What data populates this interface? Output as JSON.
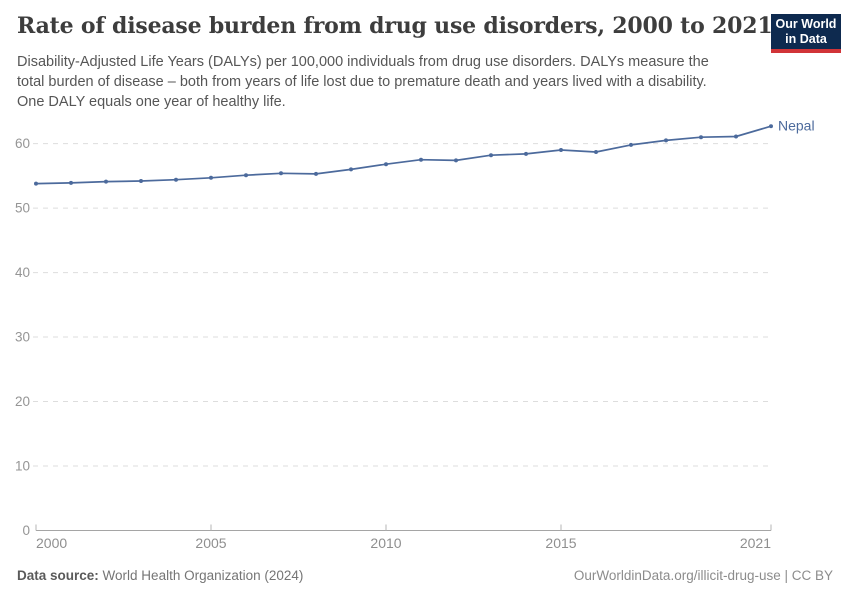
{
  "header": {
    "title": "Rate of disease burden from drug use disorders, 2000 to 2021",
    "subtitle_lines": [
      "Disability-Adjusted Life Years (DALYs) per 100,000 individuals from drug use disorders. DALYs measure the",
      "total burden of disease – both from years of life lost due to premature death and years lived with a disability.",
      "One DALY equals one year of healthy life."
    ]
  },
  "logo": {
    "line1": "Our World",
    "line2": "in Data",
    "bg_color": "#0e2a4f",
    "stripe_color": "#d13438"
  },
  "chart_data": {
    "type": "line",
    "title": "Rate of disease burden from drug use disorders, 2000 to 2021",
    "x": [
      2000,
      2001,
      2002,
      2003,
      2004,
      2005,
      2006,
      2007,
      2008,
      2009,
      2010,
      2011,
      2012,
      2013,
      2014,
      2015,
      2016,
      2017,
      2018,
      2019,
      2020,
      2021
    ],
    "series": [
      {
        "name": "Nepal",
        "color": "#4C6A9C",
        "values": [
          53.8,
          53.9,
          54.1,
          54.2,
          54.4,
          54.7,
          55.1,
          55.4,
          55.3,
          56.0,
          56.8,
          57.5,
          57.4,
          58.2,
          58.4,
          59.0,
          58.7,
          59.8,
          60.5,
          61.0,
          61.1,
          62.7
        ]
      }
    ],
    "xticks": [
      2000,
      2005,
      2010,
      2015,
      2021
    ],
    "yticks": [
      0,
      10,
      20,
      30,
      40,
      50,
      60
    ],
    "xlim": [
      2000,
      2021
    ],
    "ylim": [
      0,
      65
    ],
    "xlabel": "",
    "ylabel": "",
    "grid": "horizontal-dashed",
    "legend": "end-of-line-label",
    "marker": "dot"
  },
  "footer": {
    "source_label": "Data source:",
    "source_text": "World Health Organization (2024)",
    "attribution": "OurWorldinData.org/illicit-drug-use | CC BY"
  },
  "colors": {
    "series_blue": "#4C6A9C",
    "gridline": "#dddddd",
    "axis_line": "#a5a5a5",
    "tick_label": "#929292",
    "title_text": "#3d3d3d",
    "subtitle_text": "#565656"
  }
}
